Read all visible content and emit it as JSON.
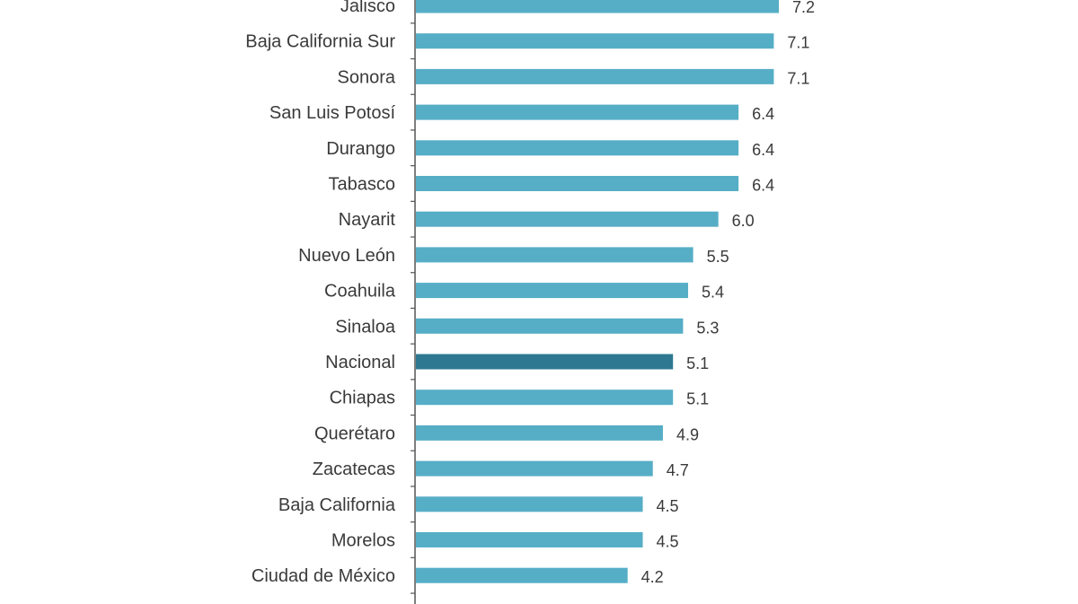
{
  "chart_data": {
    "type": "bar",
    "orientation": "horizontal",
    "title": "",
    "xlabel": "",
    "ylabel": "",
    "xlim": [
      0,
      7.2
    ],
    "grid": false,
    "categories": [
      "Jalisco",
      "Baja California Sur",
      "Sonora",
      "San Luis Potosí",
      "Durango",
      "Tabasco",
      "Nayarit",
      "Nuevo León",
      "Coahuila",
      "Sinaloa",
      "Nacional",
      "Chiapas",
      "Querétaro",
      "Zacatecas",
      "Baja California",
      "Morelos",
      "Ciudad de México"
    ],
    "values": [
      7.2,
      7.1,
      7.1,
      6.4,
      6.4,
      6.4,
      6.0,
      5.5,
      5.4,
      5.3,
      5.1,
      5.1,
      4.9,
      4.7,
      4.5,
      4.5,
      4.2
    ],
    "value_labels": [
      "7.2",
      "7.1",
      "7.1",
      "6.4",
      "6.4",
      "6.4",
      "6.0",
      "5.5",
      "5.4",
      "5.3",
      "5.1",
      "5.1",
      "4.9",
      "4.7",
      "4.5",
      "4.5",
      "4.2"
    ],
    "highlight_category": "Nacional",
    "colors": {
      "bar": "#56aec6",
      "highlight_bar": "#2e7891",
      "axis": "#555555",
      "text": "#3a3a3a"
    }
  }
}
